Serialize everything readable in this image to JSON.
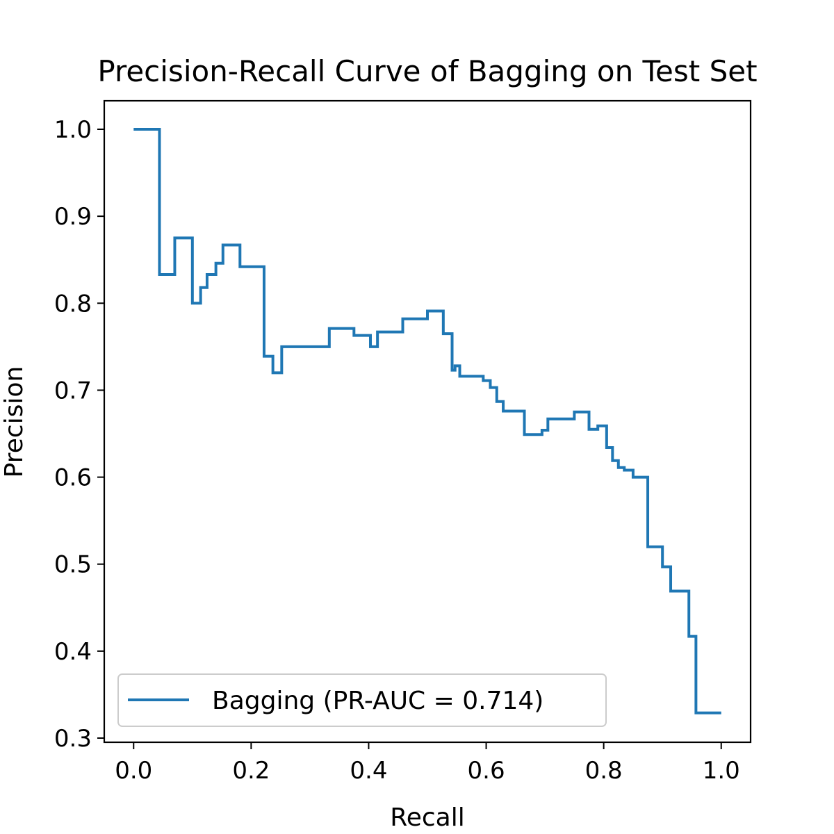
{
  "chart_data": {
    "type": "line",
    "title": "Precision-Recall Curve of Bagging on Test Set",
    "xlabel": "Recall",
    "ylabel": "Precision",
    "xlim": [
      -0.05,
      1.05
    ],
    "ylim": [
      0.3,
      1.035
    ],
    "xticks": [
      0.0,
      0.2,
      0.4,
      0.6,
      0.8,
      1.0
    ],
    "xtick_labels": [
      "0.0",
      "0.2",
      "0.4",
      "0.6",
      "0.8",
      "1.0"
    ],
    "yticks": [
      0.3,
      0.4,
      0.5,
      0.6,
      0.7,
      0.8,
      0.9,
      1.0
    ],
    "ytick_labels": [
      "0.3",
      "0.4",
      "0.5",
      "0.6",
      "0.7",
      "0.8",
      "0.9",
      "1.0"
    ],
    "grid": false,
    "legend": {
      "position": "lower-left",
      "entries": [
        "Bagging (PR-AUC = 0.714)"
      ]
    },
    "series": [
      {
        "name": "Bagging (PR-AUC = 0.714)",
        "color": "#1f77b4",
        "drawstyle": "steps-post",
        "recall": [
          0.0,
          0.044,
          0.07,
          0.1,
          0.114,
          0.125,
          0.14,
          0.152,
          0.181,
          0.222,
          0.237,
          0.252,
          0.333,
          0.375,
          0.403,
          0.415,
          0.458,
          0.5,
          0.527,
          0.542,
          0.547,
          0.555,
          0.595,
          0.607,
          0.618,
          0.629,
          0.665,
          0.695,
          0.705,
          0.75,
          0.775,
          0.79,
          0.805,
          0.815,
          0.825,
          0.835,
          0.85,
          0.86,
          0.875,
          0.9,
          0.914,
          0.945,
          0.957,
          1.0
        ],
        "precision": [
          1.0,
          0.833,
          0.875,
          0.8,
          0.818,
          0.833,
          0.846,
          0.867,
          0.842,
          0.739,
          0.72,
          0.75,
          0.771,
          0.763,
          0.75,
          0.767,
          0.782,
          0.791,
          0.765,
          0.723,
          0.728,
          0.716,
          0.711,
          0.703,
          0.687,
          0.676,
          0.649,
          0.654,
          0.667,
          0.675,
          0.655,
          0.659,
          0.634,
          0.619,
          0.611,
          0.608,
          0.6,
          0.6,
          0.52,
          0.497,
          0.469,
          0.417,
          0.329,
          0.329
        ]
      }
    ]
  }
}
